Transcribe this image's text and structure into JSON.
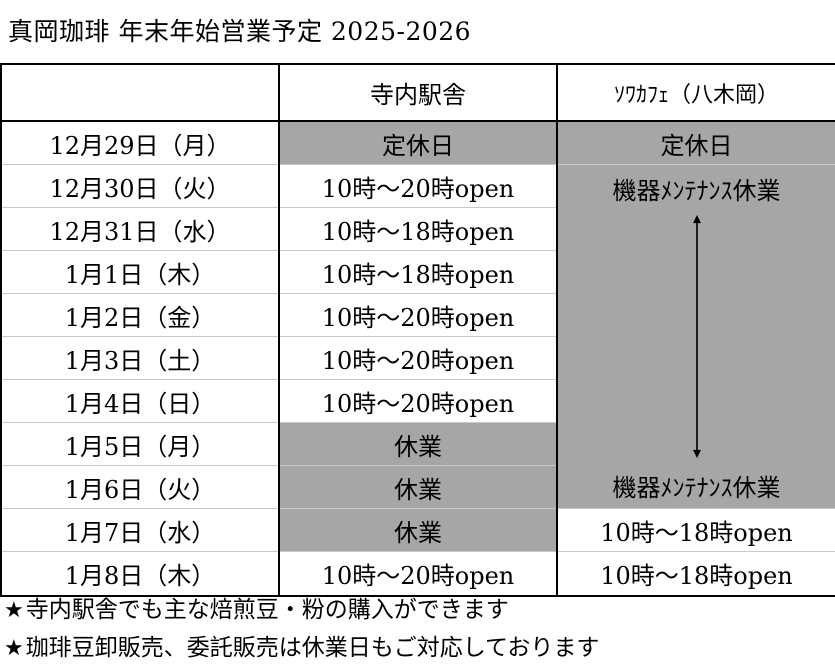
{
  "title": "真岡珈琲 年末年始営業予定 2025-2026",
  "headers": {
    "date": "",
    "tera": "寺内駅舎",
    "sowa": "ｿﾜｶﾌｪ（八木岡）"
  },
  "rows": [
    {
      "date": "12月29日（月）",
      "tera": "定休日",
      "sowa": "定休日"
    },
    {
      "date": "12月30日（火）",
      "tera": "10時～20時open"
    },
    {
      "date": "12月31日（水）",
      "tera": "10時～18時open"
    },
    {
      "date": "1月1日（木）",
      "tera": "10時～18時open"
    },
    {
      "date": "1月2日（金）",
      "tera": "10時～20時open"
    },
    {
      "date": "1月3日（土）",
      "tera": "10時～20時open"
    },
    {
      "date": "1月4日（日）",
      "tera": "10時～20時open"
    },
    {
      "date": "1月5日（月）",
      "tera": "休業"
    },
    {
      "date": "1月6日（火）",
      "tera": "休業"
    },
    {
      "date": "1月7日（水）",
      "tera": "休業",
      "sowa": "10時～18時open"
    },
    {
      "date": "1月8日（木）",
      "tera": "10時～20時open",
      "sowa": "10時～18時open"
    }
  ],
  "maintenance": {
    "start_label": "機器ﾒﾝﾃﾅﾝｽ休業",
    "end_label": "機器ﾒﾝﾃﾅﾝｽ休業",
    "arrow_icon": "double-arrow-vertical-icon"
  },
  "notes": [
    {
      "icon": "★",
      "text": "寺内駅舎でも主な焙煎豆・粉の購入ができます"
    },
    {
      "icon": "★",
      "text": "珈琲豆卸販売、委託販売は休業日もご対応しております"
    }
  ],
  "colors": {
    "closed_fill": "#a6a6a6",
    "border": "#000000",
    "grid": "#c8c8c8"
  }
}
